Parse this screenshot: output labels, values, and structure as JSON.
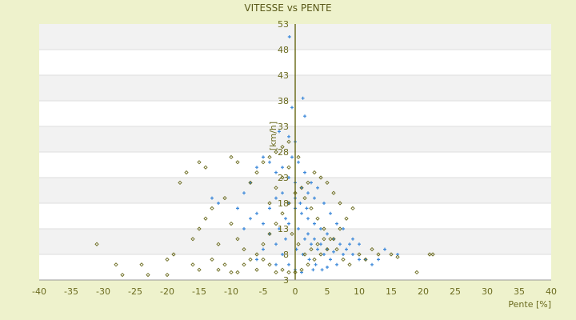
{
  "chart_data": {
    "type": "scatter",
    "title": "VITESSE vs PENTE",
    "xlabel": "Pente [%]",
    "ylabel": "[km/h]",
    "xlim": [
      -40,
      40
    ],
    "ylim": [
      3,
      53
    ],
    "xticks": [
      -40,
      -35,
      -30,
      -25,
      -20,
      -15,
      -10,
      -5,
      0,
      5,
      10,
      15,
      20,
      25,
      30,
      35,
      40
    ],
    "yticks": [
      53,
      48,
      43,
      38,
      33,
      28,
      23,
      18,
      13,
      8,
      3
    ],
    "grid": true,
    "series": [
      {
        "marker": "plus",
        "color": "#3a87d9",
        "points": [
          [
            -0.9,
            50.5
          ],
          [
            1.5,
            35
          ],
          [
            1.2,
            38.5
          ],
          [
            -0.5,
            36.7
          ],
          [
            -2.5,
            32
          ],
          [
            -1,
            31
          ],
          [
            0,
            30
          ],
          [
            -5,
            27
          ],
          [
            -4,
            26
          ],
          [
            -6,
            25
          ],
          [
            -3,
            24
          ],
          [
            -7,
            22
          ],
          [
            -8,
            20
          ],
          [
            -13,
            19
          ],
          [
            -12,
            18
          ],
          [
            -9,
            17
          ],
          [
            -6,
            16
          ],
          [
            -5,
            14
          ],
          [
            -4,
            12
          ],
          [
            -3,
            10
          ],
          [
            -2,
            8
          ],
          [
            -1,
            6
          ],
          [
            0,
            5
          ],
          [
            -2,
            25
          ],
          [
            -1,
            23
          ],
          [
            0,
            22
          ],
          [
            1,
            21
          ],
          [
            2,
            20
          ],
          [
            3,
            19
          ],
          [
            -1,
            18
          ],
          [
            0,
            17
          ],
          [
            1,
            16
          ],
          [
            2,
            15
          ],
          [
            3,
            14
          ],
          [
            4,
            13
          ],
          [
            5,
            12
          ],
          [
            6,
            11
          ],
          [
            7,
            10
          ],
          [
            8,
            9
          ],
          [
            9,
            8
          ],
          [
            10,
            7
          ],
          [
            11,
            7
          ],
          [
            12,
            6
          ],
          [
            13,
            7
          ],
          [
            -2,
            20
          ],
          [
            -1.5,
            15
          ],
          [
            0.5,
            13
          ],
          [
            1.5,
            11
          ],
          [
            2.5,
            10
          ],
          [
            3.5,
            9
          ],
          [
            4.5,
            8
          ],
          [
            5.5,
            7
          ],
          [
            6.5,
            6
          ],
          [
            7.5,
            8
          ],
          [
            8.5,
            10
          ],
          [
            -3,
            19
          ],
          [
            -4,
            17
          ],
          [
            -2.5,
            13
          ],
          [
            -1.5,
            11
          ],
          [
            0.2,
            9
          ],
          [
            1.2,
            8
          ],
          [
            2.2,
            7
          ],
          [
            3.2,
            6
          ],
          [
            4.2,
            5
          ],
          [
            -0.5,
            27
          ],
          [
            0.5,
            26
          ],
          [
            1.5,
            24
          ],
          [
            2.5,
            22
          ],
          [
            3.5,
            21
          ],
          [
            4.5,
            18
          ],
          [
            5.5,
            16
          ],
          [
            6.5,
            14
          ],
          [
            7.5,
            13
          ],
          [
            0,
            19
          ],
          [
            0.8,
            18
          ],
          [
            1.8,
            17
          ],
          [
            -1,
            14
          ],
          [
            2,
            12
          ],
          [
            3,
            11
          ],
          [
            4,
            10
          ],
          [
            5,
            9
          ],
          [
            6,
            8.5
          ],
          [
            9,
            11
          ],
          [
            10,
            10
          ],
          [
            14,
            9
          ],
          [
            16,
            8
          ],
          [
            -7,
            15
          ],
          [
            -8,
            13
          ],
          [
            -5,
            9
          ],
          [
            -6,
            7
          ],
          [
            -3,
            6
          ],
          [
            1,
            4.5
          ],
          [
            2.8,
            5
          ],
          [
            5,
            5.5
          ]
        ]
      },
      {
        "marker": "diamond",
        "color": "#6b6b1f",
        "points": [
          [
            -1,
            30
          ],
          [
            -2,
            29
          ],
          [
            -3,
            28
          ],
          [
            -4,
            27
          ],
          [
            -5,
            26
          ],
          [
            -6,
            24
          ],
          [
            -7,
            22
          ],
          [
            -9,
            26
          ],
          [
            -10,
            27
          ],
          [
            -14,
            25
          ],
          [
            -15,
            26
          ],
          [
            -17,
            24
          ],
          [
            -18,
            22
          ],
          [
            -13,
            17
          ],
          [
            -14,
            15
          ],
          [
            -15,
            13
          ],
          [
            -16,
            11
          ],
          [
            -19,
            8
          ],
          [
            -20,
            7
          ],
          [
            -24,
            6
          ],
          [
            -27,
            4
          ],
          [
            -31,
            10
          ],
          [
            -28,
            6
          ],
          [
            -23,
            4
          ],
          [
            -20,
            4
          ],
          [
            -15,
            5
          ],
          [
            -12,
            5
          ],
          [
            -10,
            4.5
          ],
          [
            -8,
            6
          ],
          [
            -6,
            8
          ],
          [
            -5,
            10
          ],
          [
            -4,
            12
          ],
          [
            -3,
            14
          ],
          [
            -2,
            16
          ],
          [
            -1,
            18
          ],
          [
            0,
            20
          ],
          [
            1,
            21
          ],
          [
            2,
            22
          ],
          [
            3,
            24
          ],
          [
            4,
            23
          ],
          [
            5,
            22
          ],
          [
            6,
            20
          ],
          [
            7,
            18
          ],
          [
            9,
            17
          ],
          [
            8,
            15
          ],
          [
            7,
            13
          ],
          [
            6,
            11
          ],
          [
            5,
            9
          ],
          [
            4,
            8
          ],
          [
            3,
            7
          ],
          [
            2,
            6
          ],
          [
            1,
            5
          ],
          [
            0,
            4.5
          ],
          [
            -1,
            4.5
          ],
          [
            -2,
            5
          ],
          [
            -3,
            4.5
          ],
          [
            -4,
            6
          ],
          [
            -5,
            7
          ],
          [
            10,
            8
          ],
          [
            11,
            7
          ],
          [
            12,
            9
          ],
          [
            13,
            8
          ],
          [
            15,
            8
          ],
          [
            16,
            7.5
          ],
          [
            19,
            4.5
          ],
          [
            21,
            8
          ],
          [
            21.5,
            8
          ],
          [
            -11,
            19
          ],
          [
            -10,
            14
          ],
          [
            -9,
            11
          ],
          [
            -8,
            9
          ],
          [
            -7,
            7
          ],
          [
            -6,
            5
          ],
          [
            -4,
            18
          ],
          [
            -3,
            21
          ],
          [
            -2,
            23
          ],
          [
            -1,
            25
          ],
          [
            0.5,
            27
          ],
          [
            1.5,
            19
          ],
          [
            2.5,
            17
          ],
          [
            3.5,
            15
          ],
          [
            4.5,
            13
          ],
          [
            5.5,
            11
          ],
          [
            6.5,
            9
          ],
          [
            7.5,
            7
          ],
          [
            8.5,
            6
          ],
          [
            -0.5,
            12
          ],
          [
            0.5,
            10
          ],
          [
            1.5,
            8
          ],
          [
            2.5,
            9
          ],
          [
            3.5,
            10
          ],
          [
            4.5,
            11
          ],
          [
            -12,
            10
          ],
          [
            -13,
            7
          ],
          [
            -16,
            6
          ],
          [
            -9,
            4.5
          ],
          [
            -11,
            6
          ]
        ]
      }
    ]
  }
}
